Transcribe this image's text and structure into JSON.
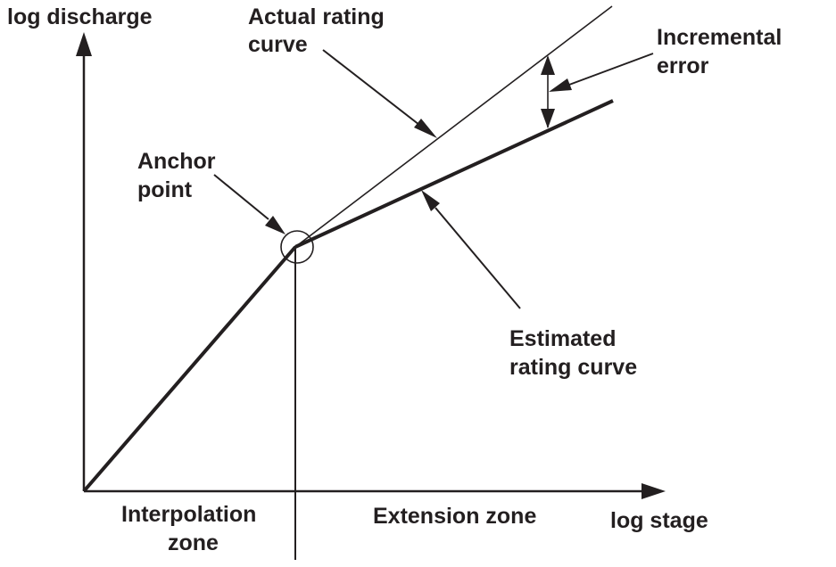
{
  "diagram": {
    "axes": {
      "y_label": "log discharge",
      "x_label": "log stage"
    },
    "labels": {
      "actual_curve": [
        "Actual rating",
        "curve"
      ],
      "incremental_error": [
        "Incremental",
        "error"
      ],
      "anchor_point": [
        "Anchor",
        "point"
      ],
      "estimated_curve": [
        "Estimated",
        "rating curve"
      ],
      "interpolation_zone": [
        "Interpolation",
        "zone"
      ],
      "extension_zone": "Extension zone"
    },
    "colors": {
      "ink": "#231f20",
      "background": "#ffffff"
    }
  }
}
